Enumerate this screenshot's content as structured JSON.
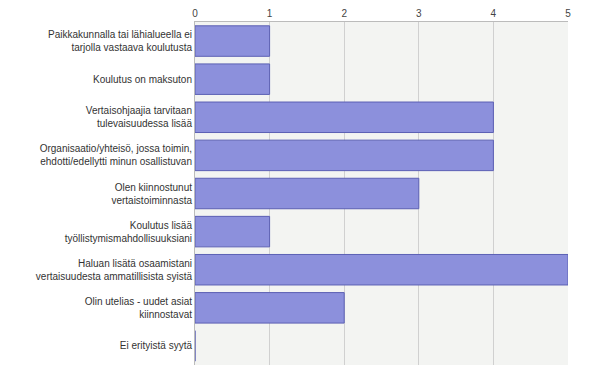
{
  "chart_data": {
    "type": "bar",
    "orientation": "horizontal",
    "categories": [
      "Paikkakunnalla tai lähialueella ei\ntarjolla vastaava koulutusta",
      "Koulutus on maksuton",
      "Vertaisohjaajia tarvitaan\ntulevaisuudessa lisää",
      "Organisaatio/yhteisö, jossa toimin,\nehdotti/edellytti minun osallistuvan",
      "Olen kiinnostunut\nvertaistoiminnasta",
      "Koulutus lisää\ntyöllistymismahdollisuuksiani",
      "Haluan lisätä osaamistani\nvertaisuudesta ammatillisista syistä",
      "Olin utelias - uudet asiat\nkiinnostavat",
      "Ei erityistä syytä"
    ],
    "values": [
      1,
      1,
      4,
      4,
      3,
      1,
      5,
      2,
      0
    ],
    "color": "#8c90dc",
    "xlim": [
      0,
      5
    ],
    "xticks": [
      0,
      1,
      2,
      3,
      4,
      5
    ],
    "grid": true
  }
}
